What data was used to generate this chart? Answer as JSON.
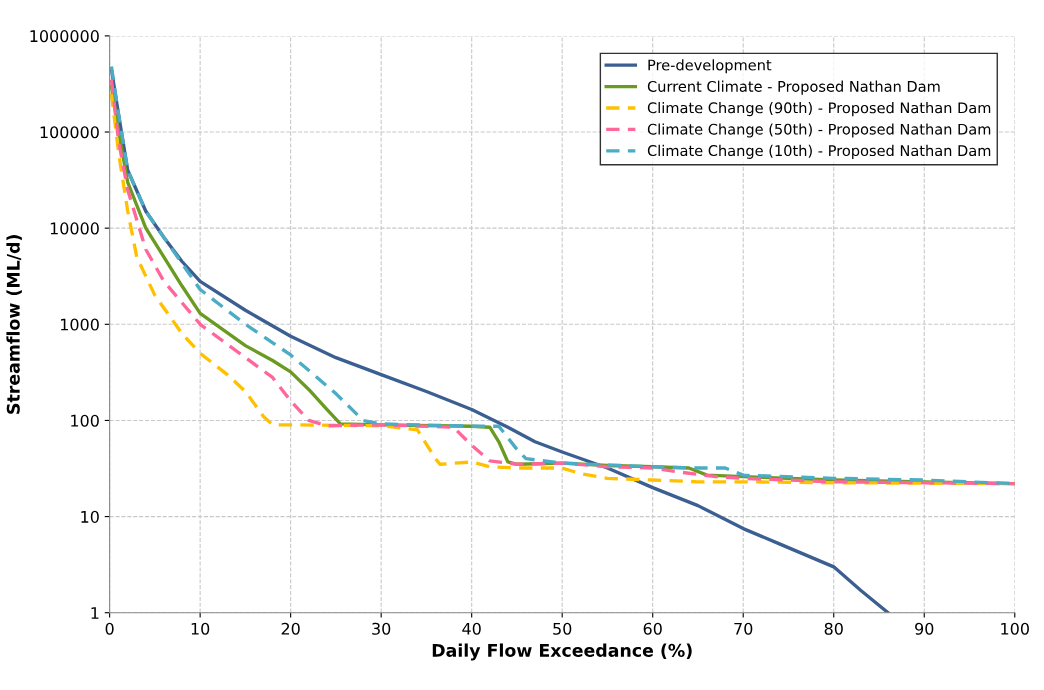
{
  "chart_data": {
    "type": "line",
    "xlabel": "Daily Flow Exceedance (%)",
    "ylabel": "Streamflow (ML/d)",
    "log": "y",
    "grid": true,
    "legend": "top right",
    "xlim": [
      0,
      100
    ],
    "xticks": [
      0,
      10,
      20,
      30,
      40,
      50,
      60,
      70,
      80,
      90,
      100
    ],
    "ylim": [
      1,
      1000000
    ],
    "yticks": [
      1,
      10,
      100,
      1000,
      10000,
      100000,
      1000000
    ],
    "series": [
      {
        "name": "Pre-development",
        "color": "#3b5f91",
        "line_style": "solid",
        "x": [
          0.2,
          1,
          2,
          4,
          6,
          8,
          10,
          15,
          20,
          25,
          30,
          35,
          40,
          44,
          47,
          50,
          55,
          60,
          65,
          70,
          74,
          80,
          83,
          86
        ],
        "values": [
          450000,
          150000,
          40000,
          15000,
          8000,
          4500,
          2800,
          1400,
          750,
          450,
          300,
          200,
          130,
          85,
          60,
          47,
          32,
          20,
          13,
          7.5,
          5.2,
          3,
          1.7,
          1
        ]
      },
      {
        "name": "Current Climate - Proposed Nathan Dam",
        "color": "#6a9a1f",
        "line_style": "solid",
        "x": [
          0.2,
          1,
          2,
          4,
          6,
          8,
          10,
          15,
          18,
          20,
          22,
          24,
          25.5,
          30,
          40,
          42,
          43,
          44,
          45,
          50,
          55,
          60,
          64,
          66,
          70,
          80,
          90,
          100
        ],
        "values": [
          300000,
          100000,
          30000,
          10000,
          5000,
          2500,
          1300,
          600,
          420,
          320,
          210,
          130,
          92,
          90,
          87,
          85,
          60,
          37,
          35,
          36,
          34,
          33,
          32,
          27,
          26,
          24,
          23,
          22
        ]
      },
      {
        "name": "Climate Change (90th) - Proposed Nathan Dam",
        "color": "#ffc000",
        "line_style": "dashed",
        "x": [
          0.2,
          1,
          2,
          3,
          5,
          8,
          10,
          13,
          15,
          17,
          18,
          20,
          30,
          34,
          36,
          36.5,
          40,
          42,
          45,
          50,
          52,
          55,
          60,
          65,
          70,
          80,
          100
        ],
        "values": [
          250000,
          60000,
          15000,
          5000,
          2000,
          800,
          500,
          300,
          200,
          110,
          90,
          90,
          88,
          80,
          40,
          35,
          37,
          33,
          32,
          32,
          28,
          25,
          24,
          23,
          23,
          22.5,
          22
        ]
      },
      {
        "name": "Climate Change (50th) - Proposed Nathan Dam",
        "color": "#ff6699",
        "line_style": "dashed",
        "x": [
          0.2,
          1,
          2,
          4,
          6,
          10,
          15,
          18,
          20,
          22,
          24,
          30,
          38,
          40,
          42,
          45,
          50,
          55,
          60,
          63,
          67,
          70,
          80,
          90,
          100
        ],
        "values": [
          350000,
          80000,
          25000,
          6000,
          2800,
          1000,
          450,
          280,
          160,
          100,
          88,
          90,
          85,
          55,
          38,
          35,
          36,
          33,
          32,
          29,
          26,
          25,
          23,
          22.5,
          22
        ]
      },
      {
        "name": "Climate Change (10th) - Proposed Nathan Dam",
        "color": "#4bacc6",
        "line_style": "dashed",
        "x": [
          0.2,
          1,
          2,
          4,
          6,
          10,
          15,
          20,
          25,
          28,
          30,
          40,
          43,
          45,
          46,
          50,
          60,
          65,
          68,
          70,
          80,
          90,
          100
        ],
        "values": [
          480000,
          150000,
          40000,
          15000,
          8000,
          2300,
          1000,
          480,
          190,
          100,
          92,
          87,
          87,
          50,
          40,
          36,
          33,
          32,
          32,
          27,
          25,
          24,
          22
        ]
      }
    ]
  }
}
